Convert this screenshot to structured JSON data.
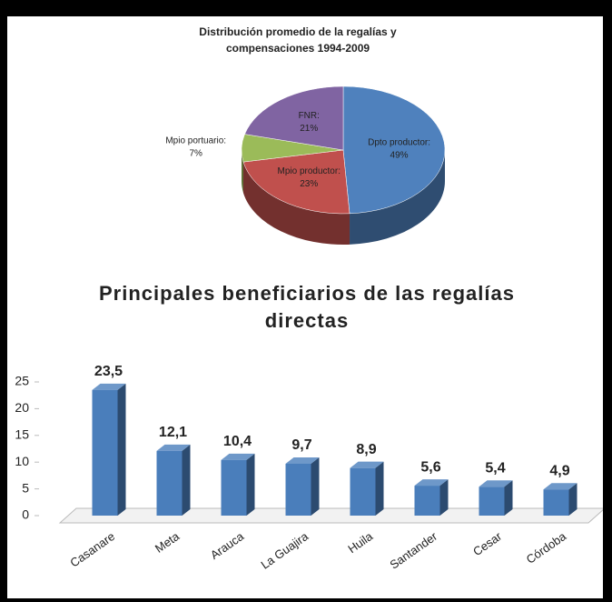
{
  "chart_data": [
    {
      "type": "pie3d",
      "title": "Distribución promedio de la regalías y compensaciones 1994-2009",
      "categories": [
        "Dpto productor:",
        "Mpio productor:",
        "Mpio portuario:",
        "FNR:"
      ],
      "values": [
        49,
        23,
        7,
        21
      ],
      "value_labels": [
        "49%",
        "23%",
        "7%",
        "21%"
      ],
      "colors": [
        "#4f81bd",
        "#c0504d",
        "#9bbb59",
        "#8064a2"
      ]
    },
    {
      "type": "bar3d",
      "title": "Principales beneficiarios de las regalías directas",
      "categories": [
        "Casanare",
        "Meta",
        "Arauca",
        "La Guajira",
        "Huila",
        "Santander",
        "Cesar",
        "Córdoba"
      ],
      "values": [
        23.5,
        12.1,
        10.4,
        9.7,
        8.9,
        5.6,
        5.4,
        4.9
      ],
      "value_labels": [
        "23,5",
        "12,1",
        "10,4",
        "9,7",
        "8,9",
        "5,6",
        "5,4",
        "4,9"
      ],
      "color": "#4a7ebb",
      "ylim": [
        0,
        25
      ],
      "yticks": [
        0,
        5,
        10,
        15,
        20,
        25
      ]
    }
  ]
}
